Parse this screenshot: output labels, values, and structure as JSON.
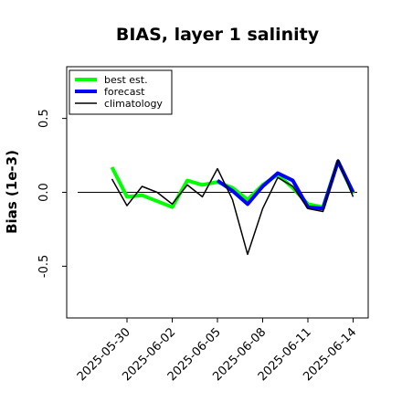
{
  "chart_data": {
    "type": "line",
    "title": "BIAS, layer 1 salinity",
    "xlabel": "",
    "ylabel": "Bias (1e-3)",
    "ylim": [
      -0.85,
      0.85
    ],
    "yticks": [
      -0.5,
      0.0,
      0.5
    ],
    "ytick_labels": [
      "-0.5",
      "0.0",
      "0.5"
    ],
    "xticks": [
      "2025-05-30",
      "2025-06-02",
      "2025-06-05",
      "2025-06-08",
      "2025-06-11",
      "2025-06-14"
    ],
    "xtick_labels": [
      "2025-05-30",
      "2025-06-02",
      "2025-06-05",
      "2025-06-08",
      "2025-06-11",
      "2025-06-14"
    ],
    "xlim": [
      "2025-05-26",
      "2025-06-15"
    ],
    "highlighted_xtick": "2025-06-05",
    "highlight_color": "#228B22",
    "zero_line": true,
    "legend_position": "top-left",
    "x": [
      "2025-05-29",
      "2025-05-30",
      "2025-05-31",
      "2025-06-01",
      "2025-06-02",
      "2025-06-03",
      "2025-06-04",
      "2025-06-05",
      "2025-06-06",
      "2025-06-07",
      "2025-06-08",
      "2025-06-09",
      "2025-06-10",
      "2025-06-11",
      "2025-06-12",
      "2025-06-13",
      "2025-06-14"
    ],
    "series": [
      {
        "name": "best est.",
        "color": "#00ff00",
        "width": 4,
        "values": [
          0.17,
          -0.03,
          -0.02,
          -0.06,
          -0.1,
          0.08,
          0.05,
          0.07,
          0.03,
          -0.05,
          0.05,
          0.12,
          0.03,
          -0.08,
          -0.1,
          0.21,
          -0.01
        ]
      },
      {
        "name": "forecast",
        "color": "#0000ff",
        "width": 4,
        "values": [
          null,
          null,
          null,
          null,
          null,
          null,
          null,
          0.08,
          0.01,
          -0.08,
          0.04,
          0.13,
          0.08,
          -0.1,
          -0.11,
          0.21,
          0.0
        ]
      },
      {
        "name": "climatology",
        "color": "#000000",
        "width": 1.5,
        "values": [
          0.09,
          -0.09,
          0.04,
          0.0,
          -0.08,
          0.05,
          -0.03,
          0.16,
          -0.05,
          -0.42,
          -0.11,
          0.1,
          0.04,
          -0.11,
          -0.13,
          0.22,
          -0.03
        ]
      }
    ]
  }
}
